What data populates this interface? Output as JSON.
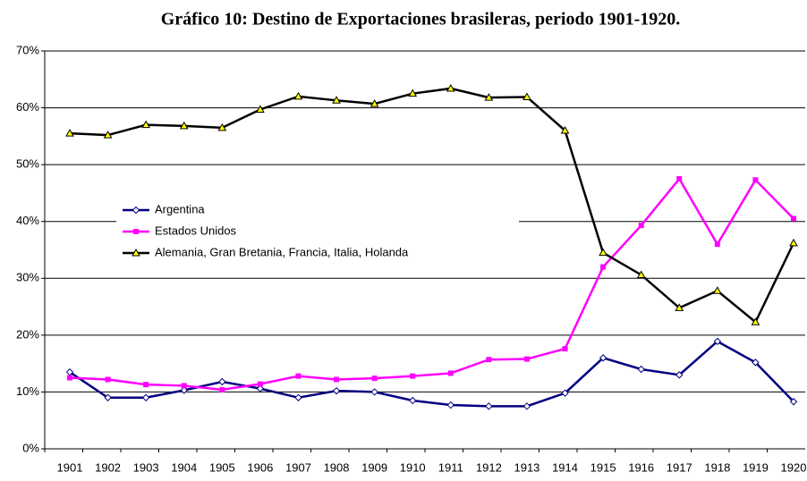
{
  "chart_data": {
    "type": "line",
    "title": "Gráfico 10: Destino de Exportaciones brasileras, periodo 1901-1920.",
    "categories": [
      "1901",
      "1902",
      "1903",
      "1904",
      "1905",
      "1906",
      "1907",
      "1908",
      "1909",
      "1910",
      "1911",
      "1912",
      "1913",
      "1914",
      "1915",
      "1916",
      "1917",
      "1918",
      "1919",
      "1920"
    ],
    "series": [
      {
        "name": "Argentina",
        "color": "#000080",
        "marker": "diamond",
        "values": [
          13.5,
          9,
          9,
          10.3,
          11.8,
          10.6,
          9,
          10.2,
          10,
          8.5,
          7.7,
          7.5,
          7.5,
          9.8,
          16,
          14,
          13,
          18.9,
          15.2,
          8.3
        ]
      },
      {
        "name": "Estados Unidos",
        "color": "#ff00ff",
        "marker": "square",
        "values": [
          12.5,
          12.2,
          11.3,
          11.1,
          10.4,
          11.4,
          12.8,
          12.2,
          12.4,
          12.8,
          13.3,
          15.7,
          15.8,
          17.6,
          32,
          39.3,
          47.5,
          36,
          47.3,
          40.5
        ]
      },
      {
        "name": "Alemania, Gran Bretania, Francia, Italia, Holanda",
        "color": "#000000",
        "marker": "triangle",
        "values": [
          55.5,
          55.2,
          57,
          56.8,
          56.5,
          59.7,
          62,
          61.3,
          60.7,
          62.5,
          63.4,
          61.8,
          61.9,
          56,
          34.5,
          30.6,
          24.8,
          27.8,
          22.3,
          36.2
        ]
      }
    ],
    "ylim": [
      0,
      70
    ],
    "yticks": [
      {
        "value": 0,
        "label": "0%"
      },
      {
        "value": 10,
        "label": "10%"
      },
      {
        "value": 20,
        "label": "20%"
      },
      {
        "value": 30,
        "label": "30%"
      },
      {
        "value": 40,
        "label": "40%"
      },
      {
        "value": 50,
        "label": "50%"
      },
      {
        "value": 60,
        "label": "60%"
      },
      {
        "value": 70,
        "label": "70%"
      }
    ],
    "grid": true,
    "legend": "left"
  }
}
